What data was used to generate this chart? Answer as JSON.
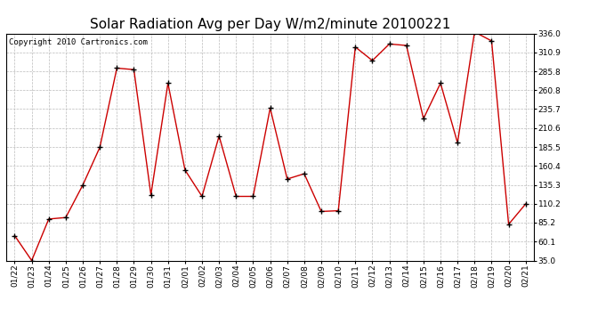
{
  "title": "Solar Radiation Avg per Day W/m2/minute 20100221",
  "copyright": "Copyright 2010 Cartronics.com",
  "dates": [
    "01/22",
    "01/23",
    "01/24",
    "01/25",
    "01/26",
    "01/27",
    "01/28",
    "01/29",
    "01/30",
    "01/31",
    "02/01",
    "02/02",
    "02/03",
    "02/04",
    "02/05",
    "02/06",
    "02/07",
    "02/08",
    "02/09",
    "02/10",
    "02/11",
    "02/12",
    "02/13",
    "02/14",
    "02/15",
    "02/16",
    "02/17",
    "02/18",
    "02/19",
    "02/20",
    "02/21"
  ],
  "values": [
    68,
    35,
    90,
    92,
    135,
    185,
    290,
    288,
    122,
    270,
    155,
    120,
    200,
    120,
    120,
    237,
    143,
    150,
    100,
    101,
    318,
    300,
    322,
    320,
    223,
    270,
    191,
    338,
    326,
    83,
    110
  ],
  "line_color": "#cc0000",
  "marker_color": "#000000",
  "bg_color": "#ffffff",
  "grid_color": "#bbbbbb",
  "title_fontsize": 11,
  "copyright_fontsize": 6.5,
  "tick_fontsize": 6.5,
  "ylim": [
    35.0,
    336.0
  ],
  "yticks": [
    35.0,
    60.1,
    85.2,
    110.2,
    135.3,
    160.4,
    185.5,
    210.6,
    235.7,
    260.8,
    285.8,
    310.9,
    336.0
  ]
}
